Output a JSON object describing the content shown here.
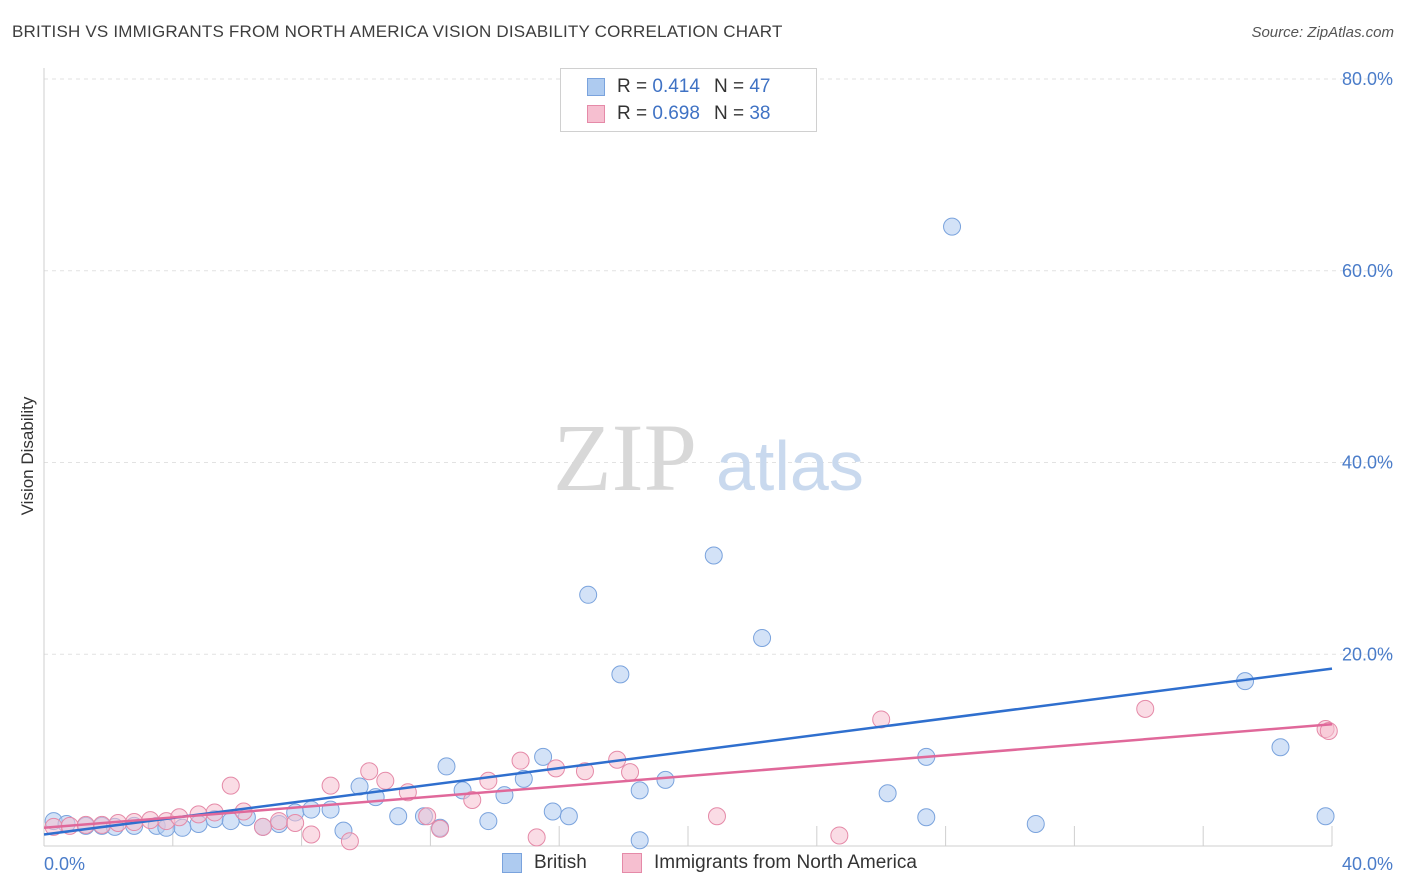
{
  "header": {
    "title": "BRITISH VS IMMIGRANTS FROM NORTH AMERICA VISION DISABILITY CORRELATION CHART",
    "source": "Source: ZipAtlas.com"
  },
  "watermark": {
    "zip": "ZIP",
    "atlas": "atlas"
  },
  "legend": {
    "rows": [
      {
        "r_label": "R =",
        "r_value": "0.414",
        "n_label": "N =",
        "n_value": "47",
        "color": "#aecbf0",
        "stroke": "#7aa3dd"
      },
      {
        "r_label": "R =",
        "r_value": "0.698",
        "n_label": "N =",
        "n_value": "38",
        "color": "#f6bfd0",
        "stroke": "#e58aa8"
      }
    ]
  },
  "chart_data": {
    "type": "scatter",
    "title": "BRITISH VS IMMIGRANTS FROM NORTH AMERICA VISION DISABILITY CORRELATION CHART",
    "xlabel": "",
    "ylabel": "Vision Disability",
    "xlim": [
      0,
      40
    ],
    "ylim": [
      0,
      80
    ],
    "x_tick_labels": [
      "0.0%",
      "40.0%"
    ],
    "y_ticks": [
      20,
      40,
      60,
      80
    ],
    "y_tick_labels": [
      "20.0%",
      "40.0%",
      "60.0%",
      "80.0%"
    ],
    "grid": true,
    "legend_position": "top-center",
    "series": [
      {
        "name": "British",
        "color": "#aecbf0",
        "stroke": "#7aa3dd",
        "line_color": "#2f6fce",
        "trend": [
          [
            0,
            1.2
          ],
          [
            40,
            18.5
          ]
        ],
        "points": [
          [
            0.3,
            2.6
          ],
          [
            0.7,
            2.3
          ],
          [
            1.3,
            2.1
          ],
          [
            1.8,
            2.1
          ],
          [
            2.2,
            2.0
          ],
          [
            2.8,
            2.1
          ],
          [
            3.5,
            2.1
          ],
          [
            3.8,
            1.9
          ],
          [
            4.3,
            1.9
          ],
          [
            4.8,
            2.3
          ],
          [
            5.3,
            2.8
          ],
          [
            5.8,
            2.6
          ],
          [
            6.3,
            3.0
          ],
          [
            6.8,
            2.0
          ],
          [
            7.3,
            2.3
          ],
          [
            7.8,
            3.5
          ],
          [
            8.3,
            3.8
          ],
          [
            8.9,
            3.8
          ],
          [
            9.3,
            1.6
          ],
          [
            9.8,
            6.2
          ],
          [
            10.3,
            5.1
          ],
          [
            11.0,
            3.1
          ],
          [
            11.8,
            3.1
          ],
          [
            12.3,
            1.9
          ],
          [
            12.5,
            8.3
          ],
          [
            13.0,
            5.8
          ],
          [
            13.8,
            2.6
          ],
          [
            14.3,
            5.3
          ],
          [
            14.9,
            7.0
          ],
          [
            15.5,
            9.3
          ],
          [
            15.8,
            3.6
          ],
          [
            16.3,
            3.1
          ],
          [
            16.9,
            26.2
          ],
          [
            17.9,
            17.9
          ],
          [
            18.5,
            0.6
          ],
          [
            18.5,
            5.8
          ],
          [
            19.3,
            6.9
          ],
          [
            20.8,
            30.3
          ],
          [
            22.3,
            21.7
          ],
          [
            26.2,
            5.5
          ],
          [
            27.4,
            9.3
          ],
          [
            27.4,
            3.0
          ],
          [
            28.2,
            64.6
          ],
          [
            30.8,
            2.3
          ],
          [
            37.3,
            17.2
          ],
          [
            38.4,
            10.3
          ],
          [
            39.8,
            3.1
          ]
        ]
      },
      {
        "name": "Immigrants from North America",
        "color": "#f6bfd0",
        "stroke": "#e58aa8",
        "line_color": "#e0689a",
        "trend": [
          [
            0,
            1.9
          ],
          [
            40,
            12.7
          ]
        ],
        "points": [
          [
            0.3,
            2.0
          ],
          [
            0.8,
            2.1
          ],
          [
            1.3,
            2.2
          ],
          [
            1.8,
            2.2
          ],
          [
            2.3,
            2.4
          ],
          [
            2.8,
            2.5
          ],
          [
            3.3,
            2.7
          ],
          [
            3.8,
            2.6
          ],
          [
            4.2,
            3.0
          ],
          [
            4.8,
            3.3
          ],
          [
            5.3,
            3.5
          ],
          [
            5.8,
            6.3
          ],
          [
            6.2,
            3.6
          ],
          [
            6.8,
            2.0
          ],
          [
            7.3,
            2.6
          ],
          [
            7.8,
            2.4
          ],
          [
            8.3,
            1.2
          ],
          [
            8.9,
            6.3
          ],
          [
            9.5,
            0.5
          ],
          [
            10.1,
            7.8
          ],
          [
            10.6,
            6.8
          ],
          [
            11.3,
            5.6
          ],
          [
            11.9,
            3.1
          ],
          [
            12.3,
            1.8
          ],
          [
            13.3,
            4.8
          ],
          [
            13.8,
            6.8
          ],
          [
            14.8,
            8.9
          ],
          [
            15.3,
            0.9
          ],
          [
            15.9,
            8.1
          ],
          [
            16.8,
            7.8
          ],
          [
            17.8,
            9.0
          ],
          [
            18.2,
            7.7
          ],
          [
            20.9,
            3.1
          ],
          [
            24.7,
            1.1
          ],
          [
            26.0,
            13.2
          ],
          [
            34.2,
            14.3
          ],
          [
            39.8,
            12.2
          ],
          [
            39.9,
            12.0
          ]
        ]
      }
    ]
  }
}
